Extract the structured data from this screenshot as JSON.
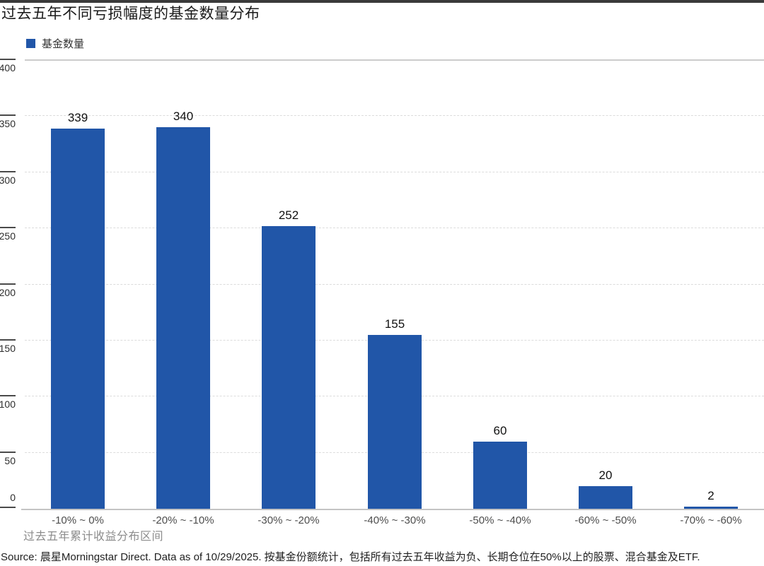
{
  "header": {
    "title": "过去五年不同亏损幅度的基金数量分布"
  },
  "colors": {
    "bar": "#2156a8",
    "top_rule": "#3a3a3a",
    "gridline": "#dcdcdc",
    "axis_tick": "#4a4a4a"
  },
  "chart_data": {
    "type": "bar",
    "title": "过去五年不同亏损幅度的基金数量分布",
    "legend": [
      {
        "label": "基金数量",
        "color": "#2156a8"
      }
    ],
    "legend_position": "top-left",
    "categories": [
      "-10% ~ 0%",
      "-20% ~ -10%",
      "-30% ~ -20%",
      "-40% ~ -30%",
      "-50% ~ -40%",
      "-60% ~ -50%",
      "-70% ~ -60%"
    ],
    "values": [
      339,
      340,
      252,
      155,
      60,
      20,
      2
    ],
    "xlabel": "过去五年累计收益分布区间",
    "ylabel": "",
    "ylim": [
      0,
      400
    ],
    "yticks": [
      0,
      50,
      100,
      150,
      200,
      250,
      300,
      350,
      400
    ],
    "grid": "horizontal-dotted"
  },
  "footer": {
    "source": "Source: 晨星Morningstar Direct. Data as of 10/29/2025. 按基金份额统计，包括所有过去五年收益为负、长期仓位在50%以上的股票、混合基金及ETF."
  }
}
